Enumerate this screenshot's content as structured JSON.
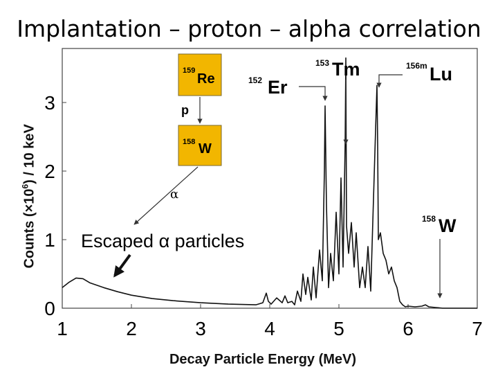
{
  "slide_title": "Implantation – proton – alpha correlation",
  "chart_data": {
    "type": "line",
    "title": "",
    "xlabel": "Decay Particle Energy (MeV)",
    "ylabel_parts": [
      "Counts (×10",
      "6",
      ") / 10 keV"
    ],
    "xlim": [
      1,
      7
    ],
    "ylim": [
      0,
      3.6
    ],
    "xticks": [
      "1",
      "2",
      "3",
      "4",
      "5",
      "6",
      "7"
    ],
    "yticks": [
      "0",
      "1",
      "2",
      "3"
    ],
    "grid": false,
    "series": [
      {
        "x": [
          1.0,
          1.1,
          1.2,
          1.3,
          1.4,
          1.6,
          1.8,
          2.0,
          2.3,
          2.6,
          3.0,
          3.4,
          3.8,
          3.9,
          3.95,
          3.98,
          4.02,
          4.1,
          4.18,
          4.22,
          4.26,
          4.32,
          4.36,
          4.4,
          4.45,
          4.48,
          4.52,
          4.55,
          4.6,
          4.63,
          4.67,
          4.72,
          4.76,
          4.79,
          4.8,
          4.82,
          4.85,
          4.88,
          4.92,
          4.96,
          5.0,
          5.03,
          5.06,
          5.09,
          5.1,
          5.11,
          5.14,
          5.18,
          5.22,
          5.25,
          5.3,
          5.34,
          5.38,
          5.42,
          5.46,
          5.5,
          5.53,
          5.55,
          5.56,
          5.57,
          5.6,
          5.64,
          5.68,
          5.72,
          5.76,
          5.8,
          5.84,
          5.88,
          5.92,
          5.96,
          6.0,
          6.1,
          6.2,
          6.25,
          6.3,
          6.4,
          6.5,
          7.0
        ],
        "y": [
          0.3,
          0.38,
          0.44,
          0.43,
          0.37,
          0.3,
          0.24,
          0.19,
          0.14,
          0.11,
          0.08,
          0.06,
          0.05,
          0.08,
          0.22,
          0.1,
          0.06,
          0.15,
          0.08,
          0.18,
          0.08,
          0.1,
          0.05,
          0.25,
          0.1,
          0.5,
          0.2,
          0.45,
          0.12,
          0.6,
          0.15,
          0.85,
          0.4,
          2.0,
          2.95,
          1.5,
          0.3,
          0.8,
          0.4,
          1.4,
          0.5,
          1.9,
          0.6,
          2.4,
          3.65,
          1.2,
          0.8,
          1.25,
          0.6,
          1.1,
          0.3,
          0.6,
          0.3,
          0.9,
          0.25,
          1.6,
          2.6,
          3.25,
          2.4,
          1.0,
          1.1,
          0.8,
          0.7,
          0.5,
          0.6,
          0.4,
          0.3,
          0.1,
          0.05,
          0.02,
          0.03,
          0.02,
          0.03,
          0.05,
          0.02,
          0.01,
          0.0,
          0.0
        ]
      }
    ],
    "annotations": {
      "escaped": "Escaped α particles",
      "alpha": "α",
      "p": "p",
      "re_mass": "159",
      "re_sym": "Re",
      "w_mass": "158",
      "w_sym": "W",
      "er_mass": "152",
      "er_sym": "Er",
      "tm_mass": "153",
      "tm_sym": "Tm",
      "lu_mass": "156m",
      "lu_sym": "Lu",
      "w2_mass": "158",
      "w2_sym": "W"
    },
    "colors": {
      "box_fill": "#f2b600",
      "line": "#111111"
    }
  }
}
